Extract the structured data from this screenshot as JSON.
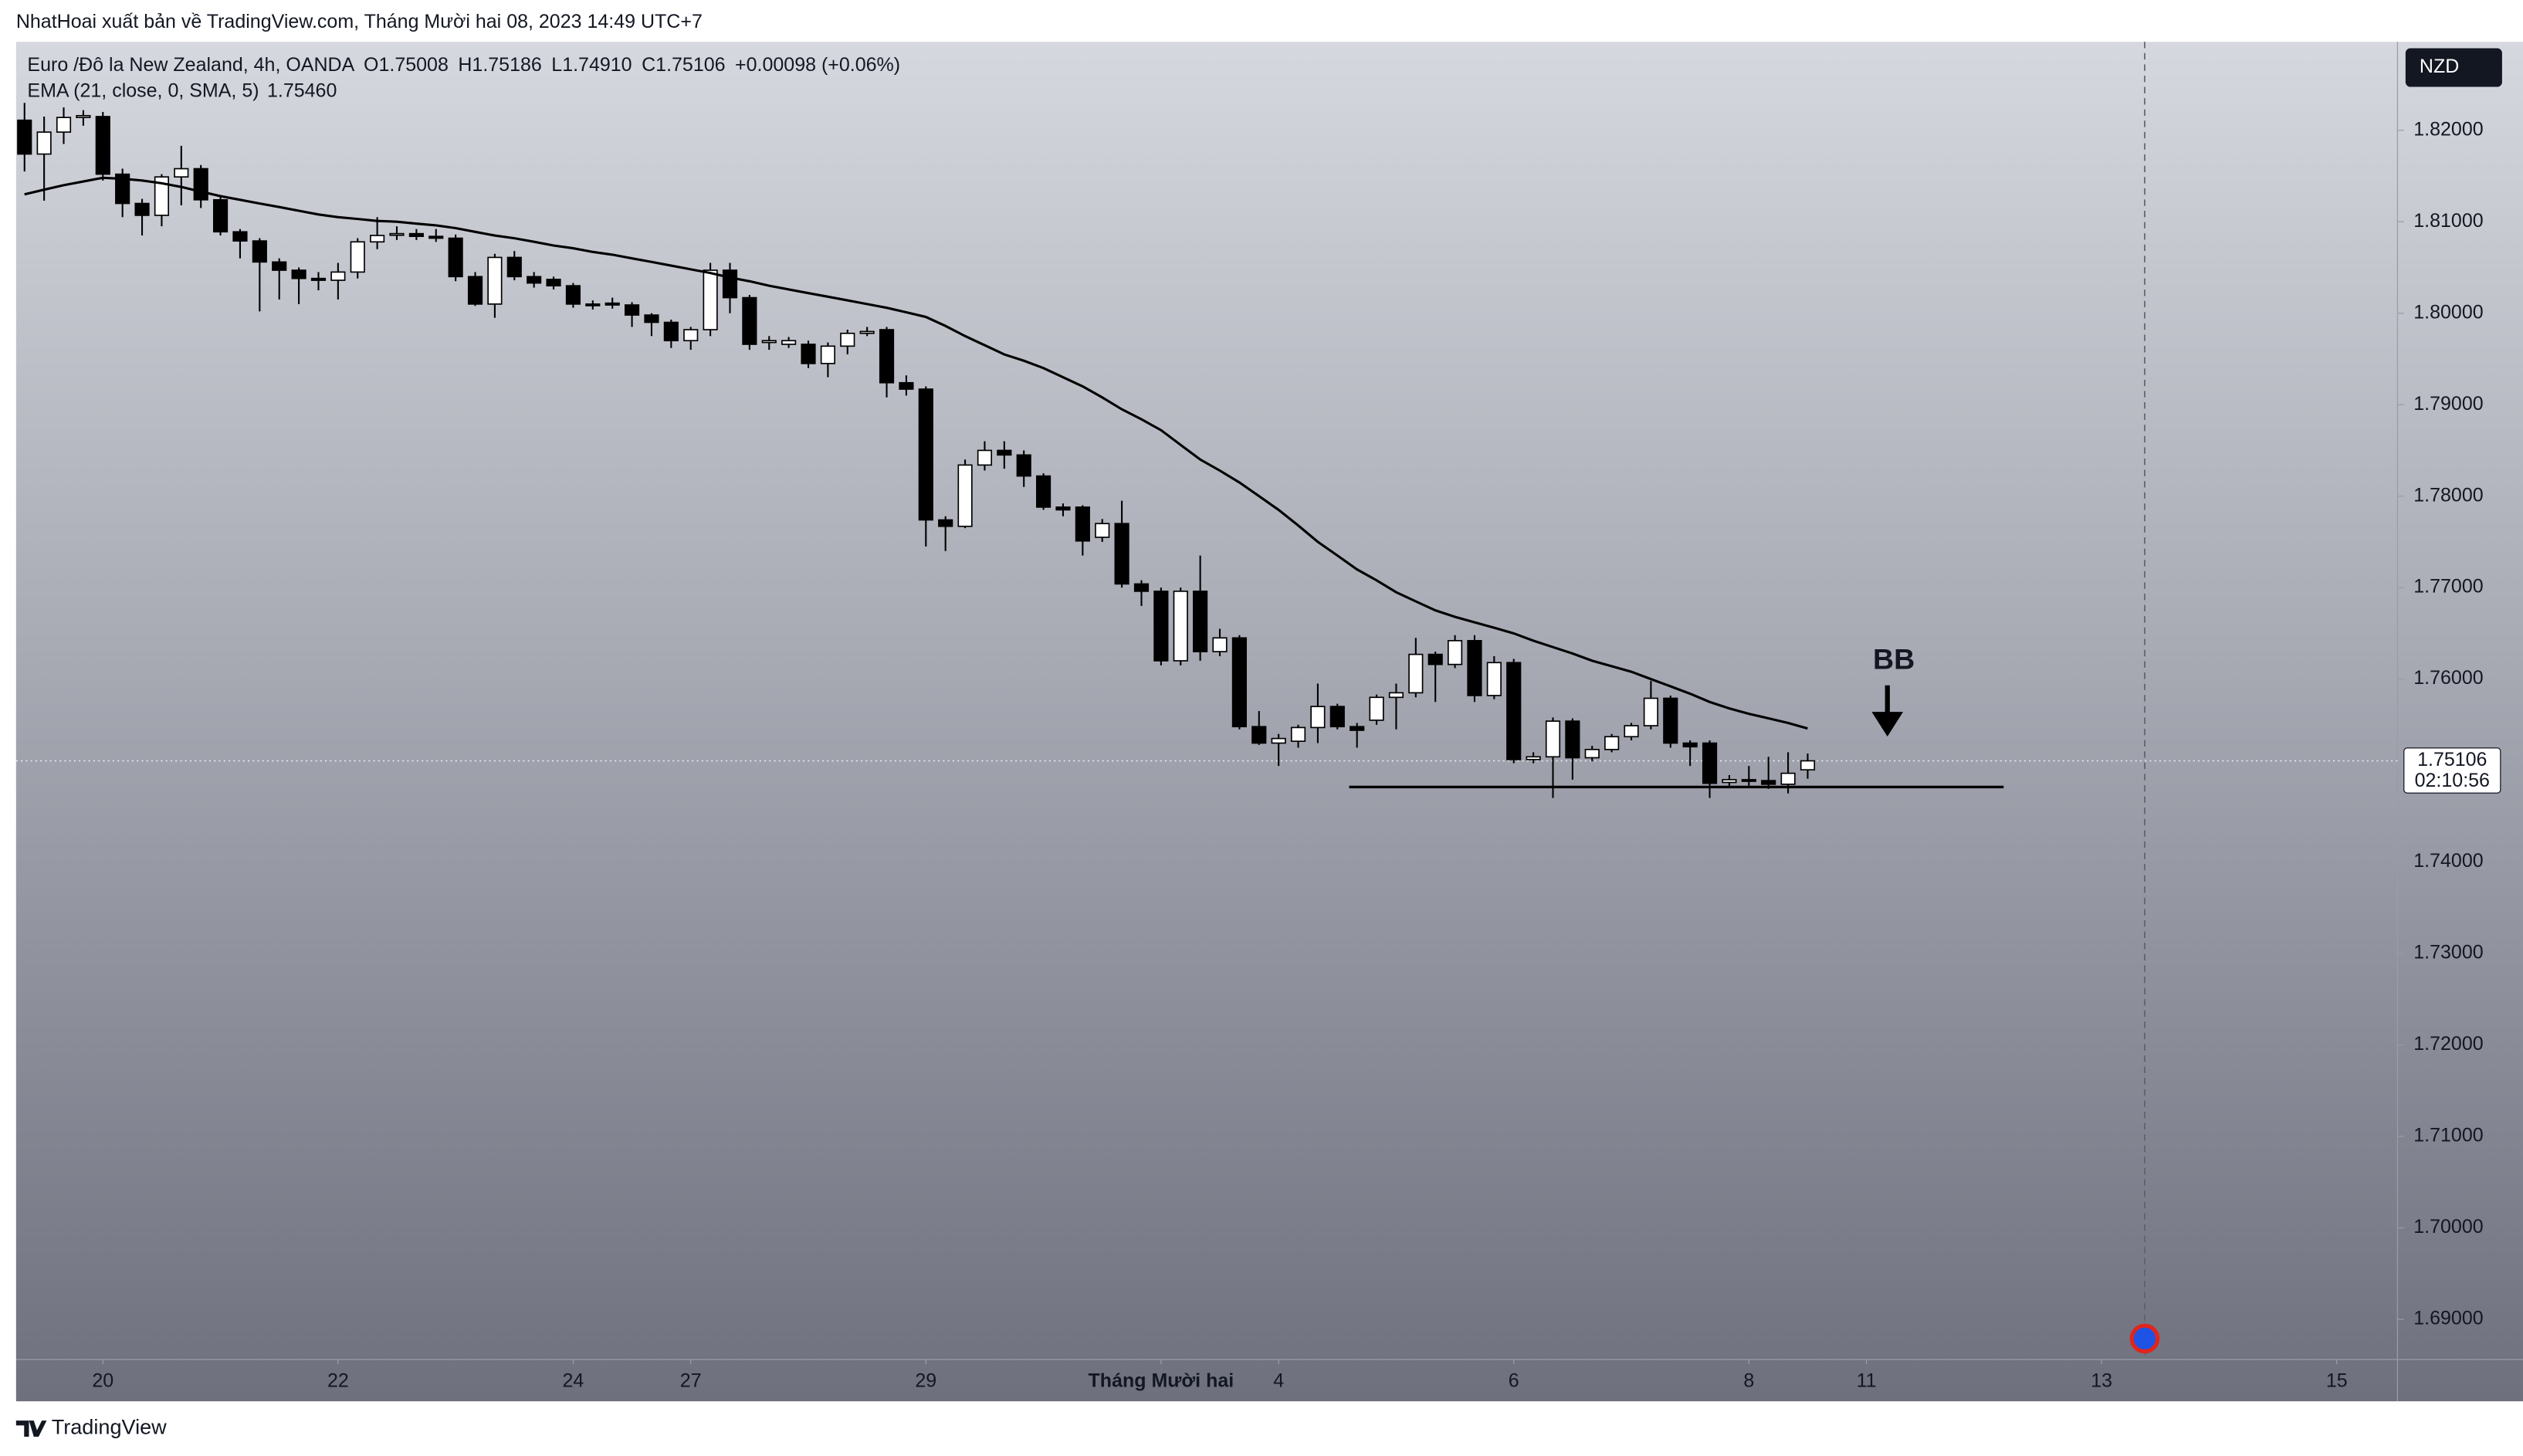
{
  "header": "NhatHoai xuất bản về TradingView.com, Tháng Mười hai 08, 2023 14:49 UTC+7",
  "footer": "TradingView",
  "chart_data": {
    "type": "candlestick",
    "symbol": "Euro /Đô la New Zealand, 4h, OANDA",
    "ohlc_labels": [
      "O1.75008",
      "H1.75186",
      "L1.74910",
      "C1.75106",
      "+0.00098 (+0.06%)"
    ],
    "currency": "NZD",
    "last_price_label": "1.75106",
    "countdown": "02:10:56",
    "annotation": "BB",
    "open": [
      1.8211,
      1.8174,
      1.8198,
      1.8214,
      1.8215,
      1.8152,
      1.812,
      1.8107,
      1.8149,
      1.8158,
      1.8124,
      1.8089,
      1.8079,
      1.8056,
      1.8047,
      1.8038,
      1.8036,
      1.8045,
      1.8078,
      1.8086,
      1.8087,
      1.8084,
      1.8082,
      1.804,
      1.801,
      1.8061,
      1.804,
      1.8037,
      1.803,
      1.801,
      1.8011,
      1.8009,
      1.7998,
      1.799,
      1.797,
      1.7982,
      1.8047,
      1.8017,
      1.7968,
      1.7966,
      1.7966,
      1.7945,
      1.7964,
      1.7978,
      1.7982,
      1.7924,
      1.7917,
      1.7774,
      1.7767,
      1.7834,
      1.785,
      1.7845,
      1.7822,
      1.7788,
      1.7788,
      1.7755,
      1.777,
      1.7704,
      1.7696,
      1.762,
      1.7696,
      1.763,
      1.7645,
      1.7548,
      1.753,
      1.7532,
      1.7547,
      1.757,
      1.7548,
      1.7555,
      1.758,
      1.7585,
      1.7627,
      1.7616,
      1.7642,
      1.7582,
      1.7618,
      1.7512,
      1.7515,
      1.7554,
      1.7514,
      1.7523,
      1.7537,
      1.7549,
      1.7579,
      1.753,
      1.753,
      1.7487,
      1.749,
      1.7489,
      1.7485,
      1.75008
    ],
    "high": [
      1.823,
      1.8215,
      1.8225,
      1.8222,
      1.822,
      1.8158,
      1.8125,
      1.8152,
      1.8183,
      1.8162,
      1.8128,
      1.8092,
      1.8082,
      1.806,
      1.805,
      1.8045,
      1.8055,
      1.8082,
      1.8105,
      1.8095,
      1.8092,
      1.8092,
      1.8086,
      1.8045,
      1.8065,
      1.8068,
      1.8045,
      1.804,
      1.8033,
      1.8014,
      1.8017,
      1.8012,
      1.8,
      1.7993,
      1.7985,
      1.8055,
      1.8055,
      1.802,
      1.7975,
      1.7974,
      1.797,
      1.7968,
      1.7982,
      1.7985,
      1.7985,
      1.7932,
      1.792,
      1.7778,
      1.784,
      1.786,
      1.786,
      1.785,
      1.7825,
      1.7792,
      1.779,
      1.7775,
      1.7795,
      1.7708,
      1.77,
      1.77,
      1.7735,
      1.7655,
      1.7648,
      1.7565,
      1.754,
      1.755,
      1.7595,
      1.7573,
      1.7552,
      1.7583,
      1.7595,
      1.7645,
      1.763,
      1.7648,
      1.7648,
      1.7625,
      1.7622,
      1.752,
      1.7558,
      1.7557,
      1.7527,
      1.754,
      1.7552,
      1.7598,
      1.7582,
      1.7533,
      1.7533,
      1.7495,
      1.7505,
      1.7515,
      1.752,
      1.75186
    ],
    "low": [
      1.8155,
      1.8123,
      1.8185,
      1.8205,
      1.8145,
      1.8105,
      1.8085,
      1.8095,
      1.8118,
      1.8115,
      1.8085,
      1.806,
      1.8002,
      1.8015,
      1.801,
      1.8025,
      1.8015,
      1.8038,
      1.807,
      1.808,
      1.808,
      1.8078,
      1.8035,
      1.8008,
      1.7995,
      1.8036,
      1.8028,
      1.8026,
      1.8006,
      1.8004,
      1.8005,
      1.7985,
      1.7975,
      1.7962,
      1.796,
      1.7975,
      1.8,
      1.796,
      1.796,
      1.7962,
      1.794,
      1.793,
      1.7955,
      1.7975,
      1.7908,
      1.791,
      1.7745,
      1.774,
      1.7765,
      1.7828,
      1.783,
      1.781,
      1.7785,
      1.7778,
      1.7735,
      1.775,
      1.77,
      1.768,
      1.7615,
      1.7615,
      1.762,
      1.7625,
      1.7545,
      1.7528,
      1.7505,
      1.7525,
      1.753,
      1.7545,
      1.7525,
      1.755,
      1.7545,
      1.758,
      1.7575,
      1.7612,
      1.7575,
      1.7578,
      1.7508,
      1.7508,
      1.747,
      1.749,
      1.751,
      1.752,
      1.7533,
      1.7545,
      1.7525,
      1.7505,
      1.747,
      1.7483,
      1.7482,
      1.748,
      1.7475,
      1.7491
    ],
    "close": [
      1.8174,
      1.8198,
      1.8214,
      1.8216,
      1.8152,
      1.812,
      1.8107,
      1.8149,
      1.8158,
      1.8124,
      1.8089,
      1.8079,
      1.8056,
      1.8047,
      1.8038,
      1.8036,
      1.8045,
      1.8078,
      1.8085,
      1.8087,
      1.8084,
      1.8082,
      1.804,
      1.801,
      1.8061,
      1.804,
      1.8033,
      1.803,
      1.801,
      1.8009,
      1.8009,
      1.7998,
      1.799,
      1.797,
      1.7982,
      1.8047,
      1.8017,
      1.7966,
      1.797,
      1.797,
      1.7945,
      1.7964,
      1.7978,
      1.798,
      1.7924,
      1.7917,
      1.7774,
      1.7767,
      1.7834,
      1.785,
      1.7845,
      1.7822,
      1.7788,
      1.7785,
      1.7751,
      1.777,
      1.7704,
      1.7696,
      1.762,
      1.7696,
      1.763,
      1.7645,
      1.7548,
      1.753,
      1.7535,
      1.7547,
      1.757,
      1.7548,
      1.7544,
      1.758,
      1.7585,
      1.7627,
      1.7616,
      1.7642,
      1.7582,
      1.7618,
      1.7512,
      1.7515,
      1.7554,
      1.7514,
      1.7523,
      1.7537,
      1.7549,
      1.7579,
      1.753,
      1.7526,
      1.7486,
      1.749,
      1.7489,
      1.7485,
      1.7497,
      1.75106
    ],
    "ema": {
      "name": "EMA (21, close, 0, SMA, 5)",
      "value_label": "1.75460",
      "color": "#000000",
      "values": [
        1.813,
        1.8135,
        1.814,
        1.8144,
        1.8148,
        1.8147,
        1.8145,
        1.8142,
        1.8138,
        1.8133,
        1.8128,
        1.8124,
        1.812,
        1.8116,
        1.8112,
        1.8108,
        1.8105,
        1.8103,
        1.8101,
        1.81,
        1.8098,
        1.8096,
        1.8093,
        1.8089,
        1.8085,
        1.8082,
        1.8078,
        1.8074,
        1.8071,
        1.8067,
        1.8064,
        1.806,
        1.8056,
        1.8052,
        1.8048,
        1.8044,
        1.8039,
        1.8035,
        1.803,
        1.8026,
        1.8022,
        1.8018,
        1.8014,
        1.801,
        1.8006,
        1.8001,
        1.7996,
        1.7986,
        1.7975,
        1.7965,
        1.7955,
        1.7948,
        1.794,
        1.793,
        1.792,
        1.7908,
        1.7895,
        1.7884,
        1.7872,
        1.7856,
        1.784,
        1.7828,
        1.7815,
        1.78,
        1.7785,
        1.7768,
        1.775,
        1.7735,
        1.772,
        1.7708,
        1.7695,
        1.7685,
        1.7675,
        1.7668,
        1.7662,
        1.7656,
        1.765,
        1.7642,
        1.7635,
        1.7628,
        1.762,
        1.7614,
        1.7608,
        1.76,
        1.7592,
        1.7584,
        1.7575,
        1.7568,
        1.7562,
        1.7557,
        1.7552,
        1.7546
      ]
    },
    "support_line": {
      "y": 1.7482,
      "x": [
        67.6,
        101
      ]
    },
    "marker_x": 108.2,
    "xlim": [
      -0.43,
      121.1
    ],
    "xticks": [
      {
        "value": 4,
        "label": "20"
      },
      {
        "value": 16,
        "label": "22"
      },
      {
        "value": 28,
        "label": "24"
      },
      {
        "value": 34,
        "label": "27"
      },
      {
        "value": 46,
        "label": "29"
      },
      {
        "value": 58,
        "label": "Tháng Mười hai"
      },
      {
        "value": 64,
        "label": "4"
      },
      {
        "value": 76,
        "label": "6"
      },
      {
        "value": 88,
        "label": "8"
      },
      {
        "value": 94,
        "label": "11"
      },
      {
        "value": 106,
        "label": "13"
      },
      {
        "value": 118,
        "label": "15"
      }
    ],
    "ylim": [
      1.68561,
      1.82967
    ],
    "yticks": [
      {
        "value": 1.69,
        "label": "1.69000"
      },
      {
        "value": 1.7,
        "label": "1.70000"
      },
      {
        "value": 1.71,
        "label": "1.71000"
      },
      {
        "value": 1.72,
        "label": "1.72000"
      },
      {
        "value": 1.73,
        "label": "1.73000"
      },
      {
        "value": 1.74,
        "label": "1.74000"
      },
      {
        "value": 1.75,
        "label": "1.75000"
      },
      {
        "value": 1.76,
        "label": "1.76000"
      },
      {
        "value": 1.77,
        "label": "1.77000"
      },
      {
        "value": 1.78,
        "label": "1.78000"
      },
      {
        "value": 1.79,
        "label": "1.79000"
      },
      {
        "value": 1.8,
        "label": "1.80000"
      },
      {
        "value": 1.81,
        "label": "1.81000"
      },
      {
        "value": 1.82,
        "label": "1.82000"
      }
    ],
    "bull_color": "#ffffff",
    "bear_color": "#000000"
  }
}
